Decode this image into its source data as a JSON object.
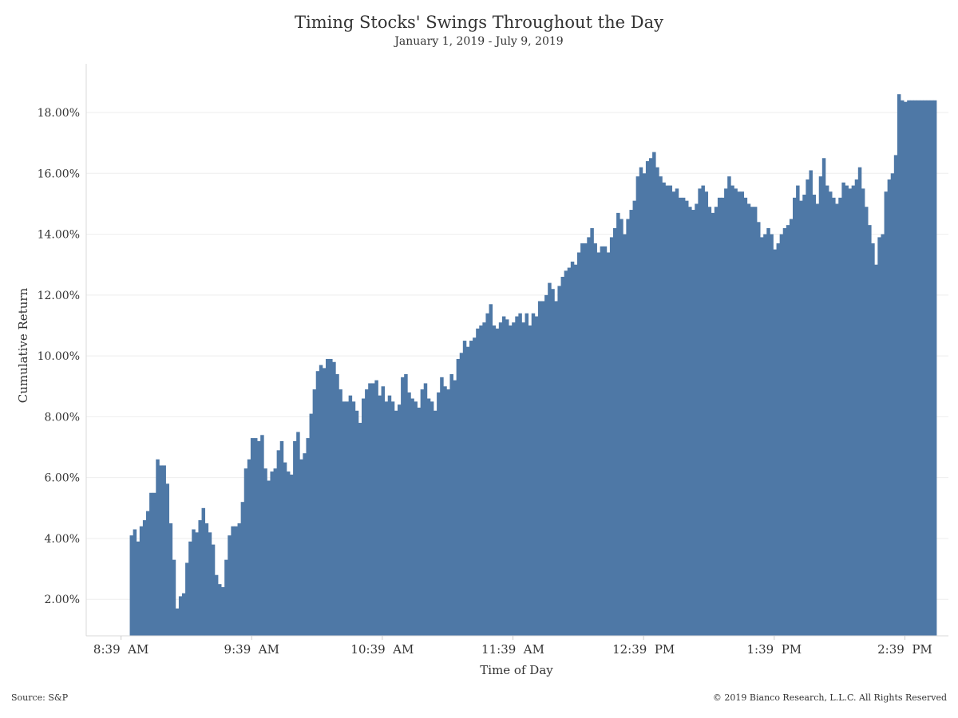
{
  "header": {
    "title": "Timing Stocks' Swings Throughout the Day",
    "subtitle": "January 1, 2019 - July 9, 2019"
  },
  "footer": {
    "source": "Source: S&P",
    "copyright": "© 2019 Bianco Research, L.L.C. All Rights Reserved"
  },
  "colors": {
    "bar": "#4e78a6",
    "grid": "#eeeeee",
    "axis": "#cccccc"
  },
  "chart_data": {
    "type": "bar",
    "title": "Timing Stocks' Swings Throughout the Day",
    "subtitle": "January 1, 2019 - July 9, 2019",
    "xlabel": "Time of Day",
    "ylabel": "Cumulative Return",
    "x_tick_labels": [
      "8:39  AM",
      "9:39  AM",
      "10:39  AM",
      "11:39  AM",
      "12:39  PM",
      "1:39  PM",
      "2:39  PM"
    ],
    "y_tick_labels": [
      "2.00%",
      "4.00%",
      "6.00%",
      "8.00%",
      "10.00%",
      "12.00%",
      "14.00%",
      "16.00%",
      "18.00%"
    ],
    "y_ticks": [
      2,
      4,
      6,
      8,
      10,
      12,
      14,
      16,
      18
    ],
    "ylim": [
      0.8,
      19.6
    ],
    "x_range_minutes": [
      -16,
      380
    ],
    "x_tick_minutes": [
      0,
      60,
      120,
      180,
      240,
      300,
      360
    ],
    "x_start_minute": 4,
    "gridlines": true,
    "series": [
      {
        "values": [
          4.1,
          4.3,
          3.9,
          4.4,
          4.6,
          4.9,
          5.5,
          5.5,
          6.6,
          6.4,
          6.4,
          5.8,
          4.5,
          3.3,
          1.7,
          2.1,
          2.2,
          3.2,
          3.9,
          4.3,
          4.2,
          4.6,
          5.0,
          4.5,
          4.2,
          3.8,
          2.8,
          2.5,
          2.4,
          3.3,
          4.1,
          4.4,
          4.4,
          4.5,
          5.2,
          6.3,
          6.6,
          7.3,
          7.3,
          7.2,
          7.4,
          6.3,
          5.9,
          6.2,
          6.3,
          6.9,
          7.2,
          6.5,
          6.2,
          6.1,
          7.2,
          7.5,
          6.6,
          6.8,
          7.3,
          8.1,
          8.9,
          9.5,
          9.7,
          9.6,
          9.9,
          9.9,
          9.8,
          9.4,
          8.9,
          8.5,
          8.5,
          8.7,
          8.5,
          8.2,
          7.8,
          8.6,
          8.9,
          9.1,
          9.1,
          9.2,
          8.7,
          9.0,
          8.5,
          8.7,
          8.5,
          8.2,
          8.4,
          9.3,
          9.4,
          8.8,
          8.6,
          8.5,
          8.3,
          8.9,
          9.1,
          8.6,
          8.5,
          8.2,
          8.8,
          9.3,
          9.0,
          8.9,
          9.4,
          9.2,
          9.9,
          10.1,
          10.5,
          10.3,
          10.5,
          10.6,
          10.9,
          11.0,
          11.1,
          11.4,
          11.7,
          11.0,
          10.9,
          11.1,
          11.3,
          11.2,
          11.0,
          11.1,
          11.3,
          11.4,
          11.1,
          11.4,
          11.0,
          11.4,
          11.3,
          11.8,
          11.8,
          12.0,
          12.4,
          12.2,
          11.8,
          12.3,
          12.6,
          12.8,
          12.9,
          13.1,
          13.0,
          13.4,
          13.7,
          13.7,
          13.9,
          14.2,
          13.7,
          13.4,
          13.6,
          13.6,
          13.4,
          13.9,
          14.2,
          14.7,
          14.5,
          14.0,
          14.5,
          14.8,
          15.1,
          15.9,
          16.2,
          16.0,
          16.4,
          16.5,
          16.7,
          16.2,
          15.9,
          15.7,
          15.6,
          15.6,
          15.4,
          15.5,
          15.2,
          15.2,
          15.1,
          14.9,
          14.8,
          15.0,
          15.5,
          15.6,
          15.4,
          14.9,
          14.7,
          14.9,
          15.2,
          15.2,
          15.5,
          15.9,
          15.6,
          15.5,
          15.4,
          15.4,
          15.2,
          15.0,
          14.9,
          14.9,
          14.4,
          13.9,
          14.0,
          14.2,
          14.0,
          13.5,
          13.7,
          14.0,
          14.2,
          14.3,
          14.5,
          15.2,
          15.6,
          15.1,
          15.3,
          15.8,
          16.1,
          15.3,
          15.0,
          15.9,
          16.5,
          15.6,
          15.4,
          15.2,
          15.0,
          15.2,
          15.7,
          15.6,
          15.5,
          15.6,
          15.8,
          16.2,
          15.5,
          14.9,
          14.3,
          13.7,
          13.0,
          13.9,
          14.0,
          15.4,
          15.8,
          16.0,
          16.6,
          18.6,
          18.4,
          18.35,
          18.4,
          18.4,
          18.4,
          18.4,
          18.4,
          18.4,
          18.4,
          18.4,
          18.4
        ]
      }
    ]
  }
}
